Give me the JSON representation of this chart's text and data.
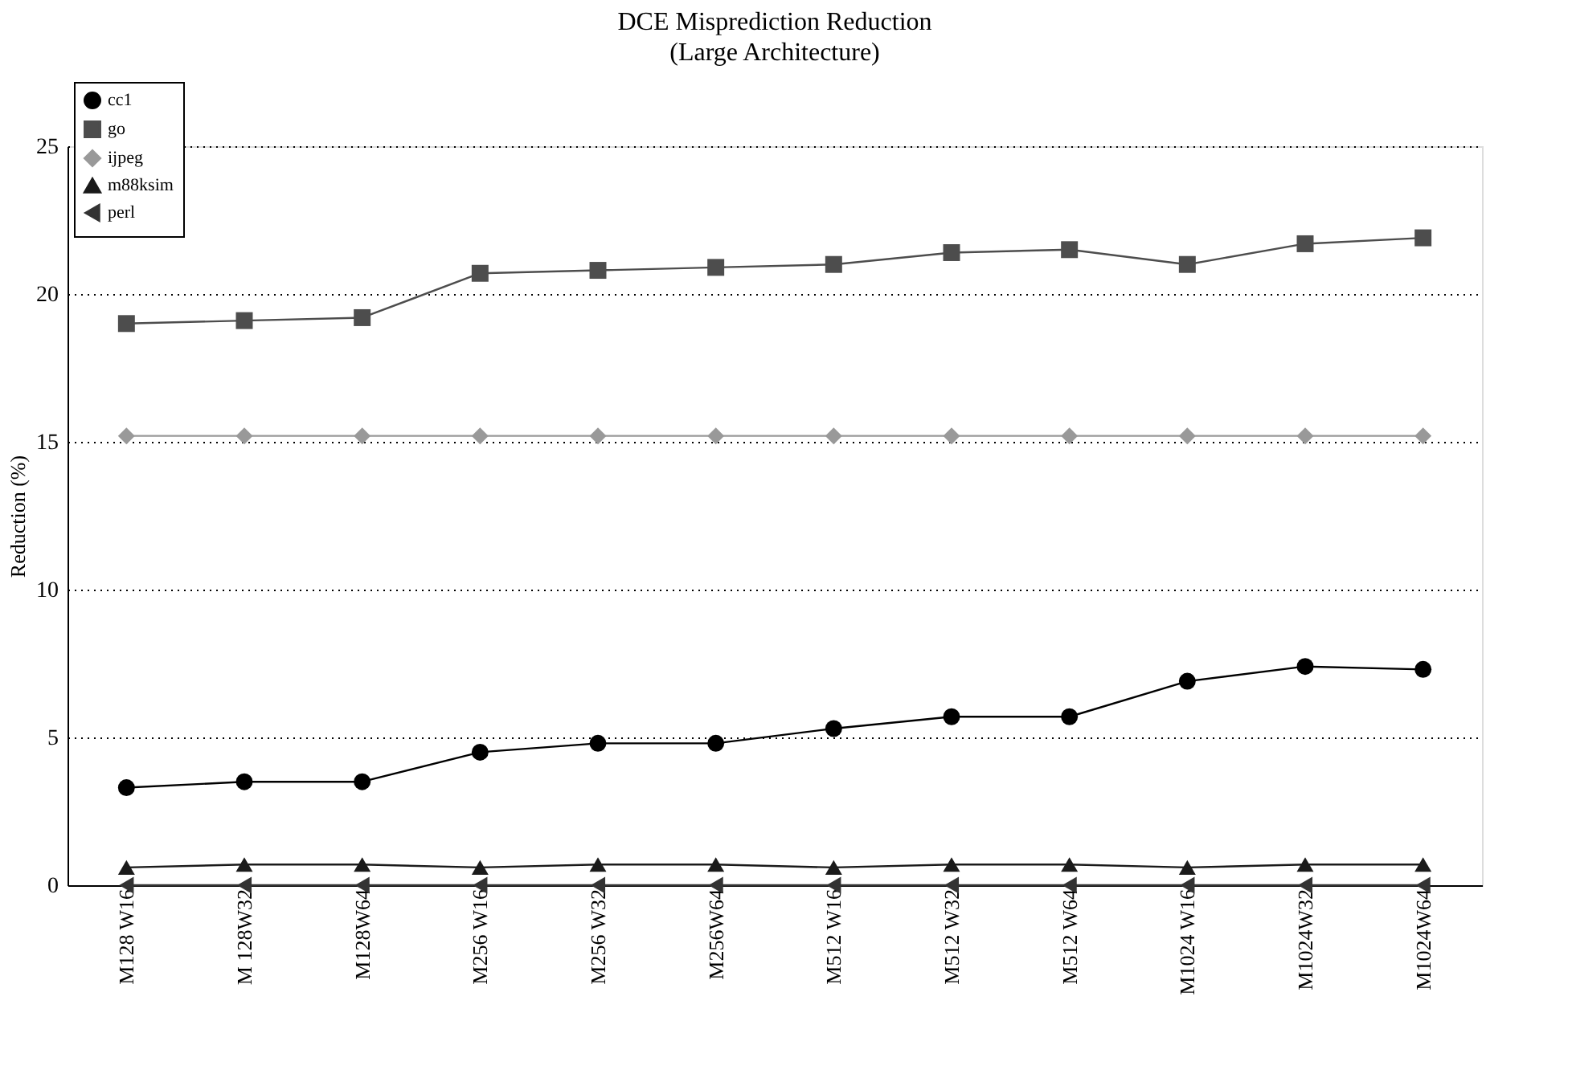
{
  "chart_data": {
    "type": "line",
    "title": "DCE Misprediction Reduction",
    "subtitle": "(Large Architecture)",
    "ylabel": "Reduction (%)",
    "categories": [
      "M128 W16",
      "M 128W32",
      "M128W64",
      "M256 W16",
      "M256 W32",
      "M256W64",
      "M512 W16",
      "M512 W32",
      "M512 W64",
      "M1024 W16",
      "M1024W32",
      "M1024W64"
    ],
    "series": [
      {
        "name": "cc1",
        "color": "#000000",
        "marker": "circle",
        "values": [
          3.3,
          3.5,
          3.5,
          4.5,
          4.8,
          4.8,
          5.3,
          5.7,
          5.7,
          6.9,
          7.4,
          7.3
        ]
      },
      {
        "name": "go",
        "color": "#4d4d4d",
        "marker": "square",
        "values": [
          19.0,
          19.1,
          19.2,
          20.7,
          20.8,
          20.9,
          21.0,
          21.4,
          21.5,
          21.0,
          21.7,
          21.9
        ]
      },
      {
        "name": "ijpeg",
        "color": "#999999",
        "marker": "diamond",
        "values": [
          15.2,
          15.2,
          15.2,
          15.2,
          15.2,
          15.2,
          15.2,
          15.2,
          15.2,
          15.2,
          15.2,
          15.2
        ]
      },
      {
        "name": "m88ksim",
        "color": "#1a1a1a",
        "marker": "triangle",
        "values": [
          0.6,
          0.7,
          0.7,
          0.6,
          0.7,
          0.7,
          0.6,
          0.7,
          0.7,
          0.6,
          0.7,
          0.7
        ]
      },
      {
        "name": "perl",
        "color": "#333333",
        "marker": "triangle-left",
        "values": [
          0,
          0,
          0,
          0,
          0,
          0,
          0,
          0,
          0,
          0,
          0,
          0
        ]
      }
    ],
    "ylim": [
      0,
      25
    ],
    "yticks": [
      0,
      5,
      10,
      15,
      20,
      25
    ],
    "grid": "y",
    "legend": "top left",
    "line_style": "solid"
  }
}
